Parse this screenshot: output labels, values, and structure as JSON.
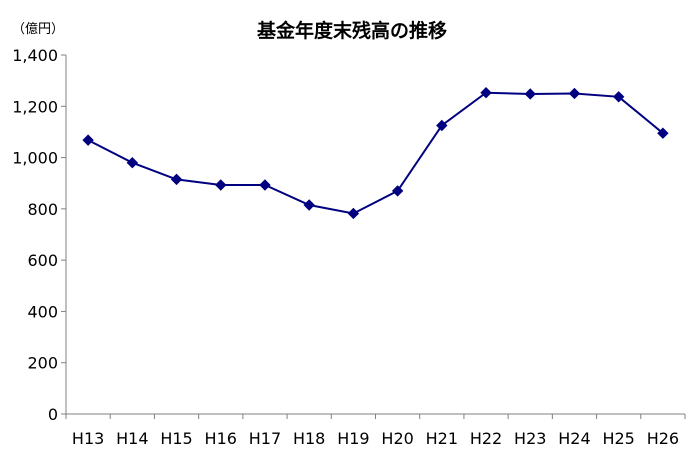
{
  "chart_data": {
    "type": "line",
    "title": "基金年度末残高の推移",
    "unit_label": "（億円）",
    "categories": [
      "H13",
      "H14",
      "H15",
      "H16",
      "H17",
      "H18",
      "H19",
      "H20",
      "H21",
      "H22",
      "H23",
      "H24",
      "H25",
      "H26"
    ],
    "series": [
      {
        "values": [
          1068,
          980,
          915,
          893,
          893,
          815,
          782,
          870,
          1125,
          1253,
          1248,
          1250,
          1237,
          1095
        ]
      }
    ],
    "ylim": [
      0,
      1400
    ],
    "y_ticks": [
      0,
      200,
      400,
      600,
      800,
      1000,
      1200,
      1400
    ],
    "y_tick_labels": [
      "0",
      "200",
      "400",
      "600",
      "800",
      "1,000",
      "1,200",
      "1,400"
    ],
    "grid": false,
    "legend": "none",
    "xlabel": "",
    "ylabel": "",
    "colors": {
      "series": "#000080",
      "axis": "#808080"
    }
  }
}
